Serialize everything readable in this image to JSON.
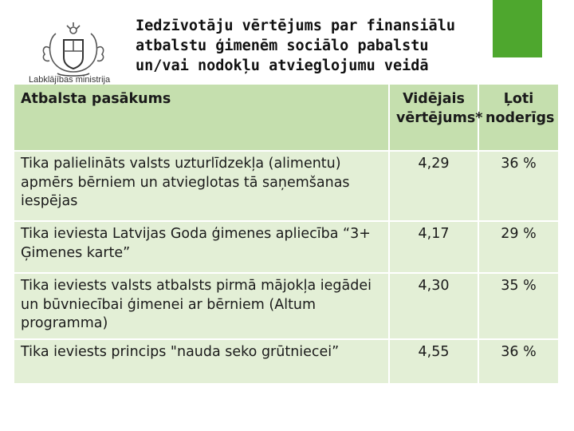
{
  "header": {
    "organization": "Labklājības ministrija",
    "title_lines": [
      "Iedzīvotāju vērtējums par finansiālu",
      "atbalstu ģimenēm sociālo pabalstu",
      "un/vai nodokļu atvieglojumu  veidā"
    ]
  },
  "table": {
    "columns": [
      "Atbalsta pasākums",
      "Vidējais vērtējums*",
      "Ļoti noderīgs"
    ],
    "column_lines": {
      "avg": [
        "Vidējais",
        "vērtējums*"
      ],
      "useful": [
        "Ļoti",
        "noderīgs"
      ]
    },
    "rows": [
      {
        "measure": "Tika palielināts valsts uzturlīdzekļa (alimentu) apmērs bērniem un atvieglotas tā saņemšanas iespējas",
        "average": "4,29",
        "very_useful": "36 %"
      },
      {
        "measure": "Tika ieviesta Latvijas Goda ģimenes apliecība “3+ Ģimenes karte”",
        "average": "4,17",
        "very_useful": "29 %"
      },
      {
        "measure": "Tika ieviests valsts atbalsts pirmā mājokļa iegādei un būvniecībai ģimenei ar bērniem (Altum programma)",
        "average": "4,30",
        "very_useful": "35 %"
      },
      {
        "measure": "Tika ieviests princips \"nauda seko grūtniecei”",
        "average": "4,55",
        "very_useful": "36 %"
      }
    ]
  },
  "colors": {
    "accent_green": "#4ea72e",
    "header_fill": "#c5dfae",
    "row_fill": "#e3efd6"
  }
}
